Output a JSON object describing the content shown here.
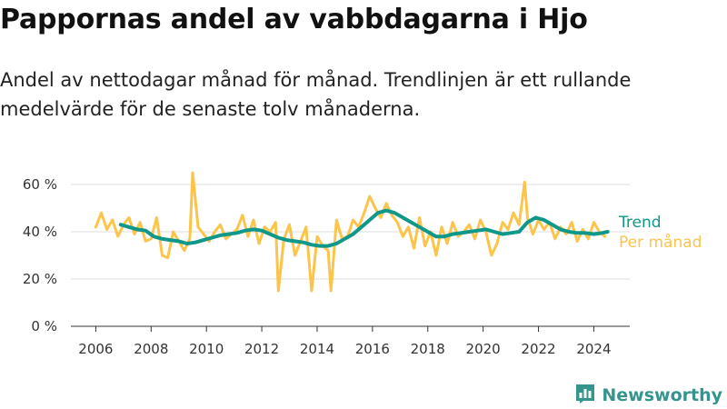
{
  "title": "Pappornas andel av vabbdagarna i Hjo",
  "subtitle": "Andel av nettodagar månad för månad. Trendlinjen är ett rullande medelvärde för de senaste tolv månaderna.",
  "brand": {
    "name": "Newsworthy",
    "icon": "bar-chart-logo-icon"
  },
  "colors": {
    "trend": "#0f9889",
    "monthly": "#fcc44a",
    "grid": "#dddddd",
    "axis": "#333333"
  },
  "chart_data": {
    "type": "line",
    "title": "Pappornas andel av vabbdagarna i Hjo",
    "xlabel": "",
    "ylabel": "",
    "xlim": [
      2005.1,
      2025.3
    ],
    "ylim": [
      0,
      65
    ],
    "x_ticks": [
      2006,
      2008,
      2010,
      2012,
      2014,
      2016,
      2018,
      2020,
      2022,
      2024
    ],
    "x_tick_labels": [
      "2006",
      "2008",
      "2010",
      "2012",
      "2014",
      "2016",
      "2018",
      "2020",
      "2022",
      "2024"
    ],
    "y_ticks": [
      0,
      20,
      40,
      60
    ],
    "y_tick_labels": [
      "0 %",
      "20 %",
      "40 %",
      "60 %"
    ],
    "grid": "horizontal",
    "legend": "right, labels at line ends",
    "series": [
      {
        "name": "Per månad",
        "x": [
          2006.0,
          2006.2,
          2006.4,
          2006.6,
          2006.8,
          2007.0,
          2007.2,
          2007.4,
          2007.6,
          2007.8,
          2008.0,
          2008.2,
          2008.4,
          2008.6,
          2008.8,
          2009.0,
          2009.2,
          2009.4,
          2009.5,
          2009.7,
          2009.9,
          2010.1,
          2010.3,
          2010.5,
          2010.7,
          2010.9,
          2011.1,
          2011.3,
          2011.5,
          2011.7,
          2011.9,
          2012.1,
          2012.3,
          2012.5,
          2012.6,
          2012.8,
          2013.0,
          2013.2,
          2013.4,
          2013.6,
          2013.8,
          2014.0,
          2014.2,
          2014.4,
          2014.5,
          2014.7,
          2014.9,
          2015.1,
          2015.3,
          2015.5,
          2015.7,
          2015.9,
          2016.1,
          2016.3,
          2016.5,
          2016.7,
          2016.9,
          2017.1,
          2017.3,
          2017.5,
          2017.7,
          2017.9,
          2018.1,
          2018.3,
          2018.5,
          2018.7,
          2018.9,
          2019.1,
          2019.3,
          2019.5,
          2019.7,
          2019.9,
          2020.1,
          2020.3,
          2020.5,
          2020.7,
          2020.9,
          2021.1,
          2021.3,
          2021.5,
          2021.6,
          2021.8,
          2022.0,
          2022.2,
          2022.4,
          2022.6,
          2022.8,
          2023.0,
          2023.2,
          2023.4,
          2023.6,
          2023.8,
          2024.0,
          2024.2,
          2024.4
        ],
        "values": [
          42,
          48,
          41,
          45,
          38,
          43,
          46,
          39,
          44,
          36,
          37,
          46,
          30,
          29,
          40,
          36,
          32,
          37,
          65,
          42,
          39,
          36,
          40,
          43,
          37,
          39,
          41,
          47,
          38,
          45,
          35,
          42,
          40,
          44,
          15,
          37,
          43,
          30,
          36,
          42,
          15,
          38,
          34,
          32,
          15,
          45,
          37,
          38,
          45,
          42,
          48,
          55,
          50,
          46,
          52,
          47,
          44,
          38,
          42,
          33,
          46,
          34,
          40,
          30,
          42,
          35,
          44,
          38,
          40,
          43,
          37,
          45,
          40,
          30,
          35,
          44,
          41,
          48,
          43,
          61,
          46,
          39,
          45,
          41,
          44,
          37,
          42,
          39,
          44,
          36,
          41,
          37,
          44,
          40,
          38
        ]
      },
      {
        "name": "Trend",
        "x": [
          2006.9,
          2007.2,
          2007.5,
          2007.8,
          2008.1,
          2008.4,
          2008.7,
          2009.0,
          2009.3,
          2009.6,
          2009.9,
          2010.2,
          2010.5,
          2010.8,
          2011.1,
          2011.4,
          2011.7,
          2012.0,
          2012.3,
          2012.6,
          2012.9,
          2013.2,
          2013.5,
          2013.8,
          2014.1,
          2014.4,
          2014.7,
          2015.0,
          2015.3,
          2015.6,
          2015.9,
          2016.2,
          2016.5,
          2016.8,
          2017.1,
          2017.4,
          2017.7,
          2018.0,
          2018.3,
          2018.6,
          2018.9,
          2019.2,
          2019.5,
          2019.8,
          2020.1,
          2020.4,
          2020.7,
          2021.0,
          2021.3,
          2021.6,
          2021.9,
          2022.2,
          2022.5,
          2022.8,
          2023.1,
          2023.4,
          2023.7,
          2024.0,
          2024.3,
          2024.5
        ],
        "values": [
          43,
          42,
          41,
          40.5,
          38,
          37,
          36.5,
          36,
          35,
          35.5,
          36.5,
          37.5,
          38.5,
          39,
          39.5,
          40.5,
          41,
          40.5,
          39,
          37.5,
          36.5,
          36,
          35.5,
          34.5,
          34,
          34,
          35,
          37,
          39,
          42,
          45,
          48,
          49,
          48,
          46,
          44,
          42,
          40,
          38,
          38,
          39,
          39.5,
          40,
          40.5,
          41,
          40,
          39,
          39.5,
          40,
          44,
          46,
          45,
          43,
          41,
          40,
          39.5,
          39.5,
          39,
          39.5,
          40
        ]
      }
    ]
  }
}
